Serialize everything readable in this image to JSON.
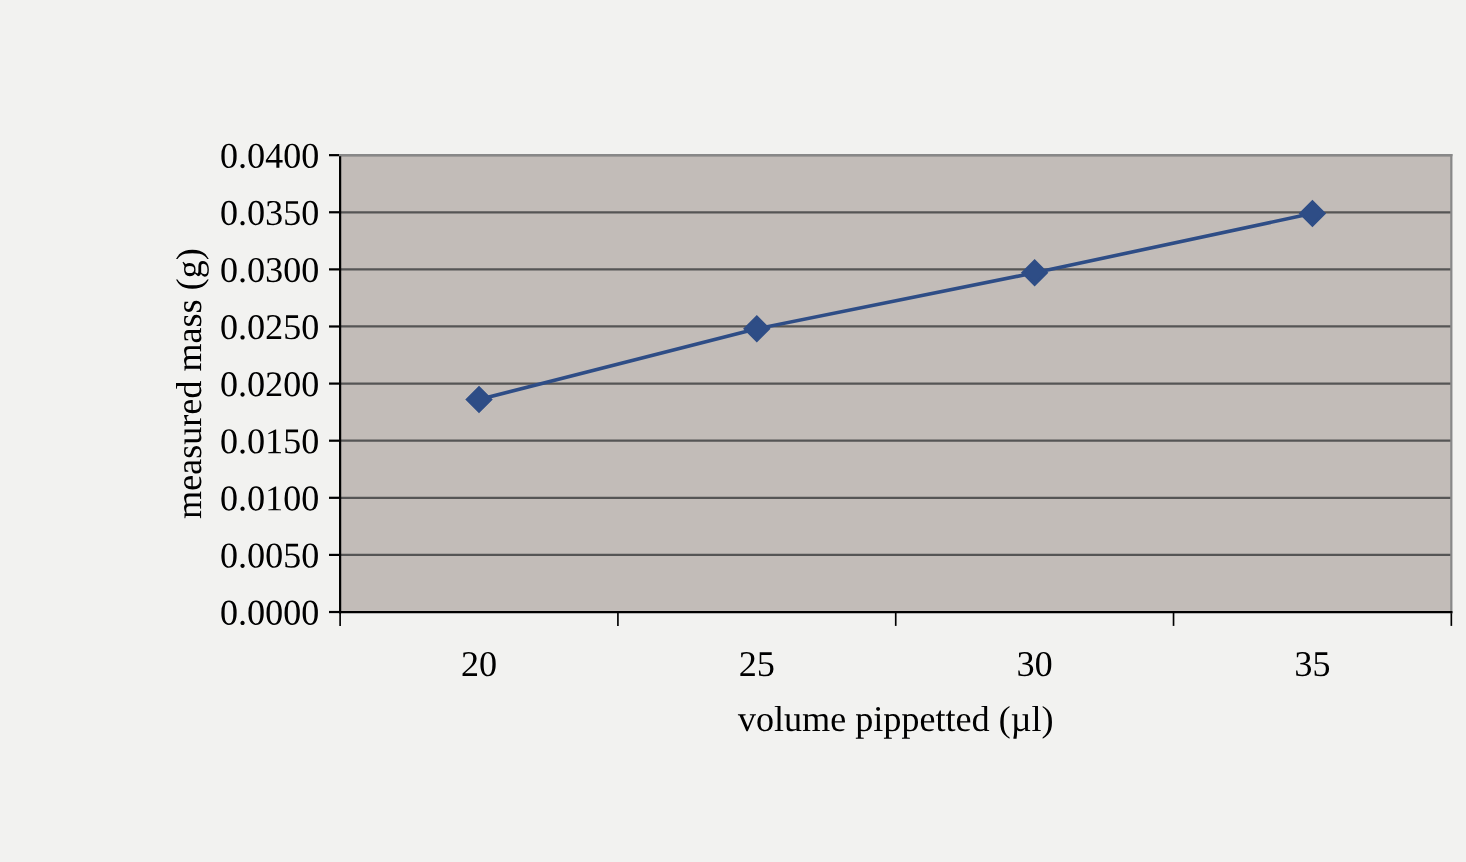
{
  "chart_data": {
    "type": "line",
    "xlabel": "volume pippetted (µl)",
    "ylabel": "measured mass (g)",
    "categories": [
      "20",
      "25",
      "30",
      "35"
    ],
    "series": [
      {
        "color": "#2e4d86",
        "values": [
          0.0186,
          0.0248,
          0.0297,
          0.0349
        ]
      }
    ],
    "ylim": [
      0.0,
      0.04
    ],
    "yticks": [
      {
        "value": 0.0,
        "label": "0.0000"
      },
      {
        "value": 0.005,
        "label": "0.0050"
      },
      {
        "value": 0.01,
        "label": "0.0100"
      },
      {
        "value": 0.015,
        "label": "0.0150"
      },
      {
        "value": 0.02,
        "label": "0.0200"
      },
      {
        "value": 0.025,
        "label": "0.0250"
      },
      {
        "value": 0.03,
        "label": "0.0300"
      },
      {
        "value": 0.035,
        "label": "0.0350"
      },
      {
        "value": 0.04,
        "label": "0.0400"
      }
    ],
    "grid": "y",
    "marker": "diamond",
    "line_style": "solid",
    "legend": false
  }
}
